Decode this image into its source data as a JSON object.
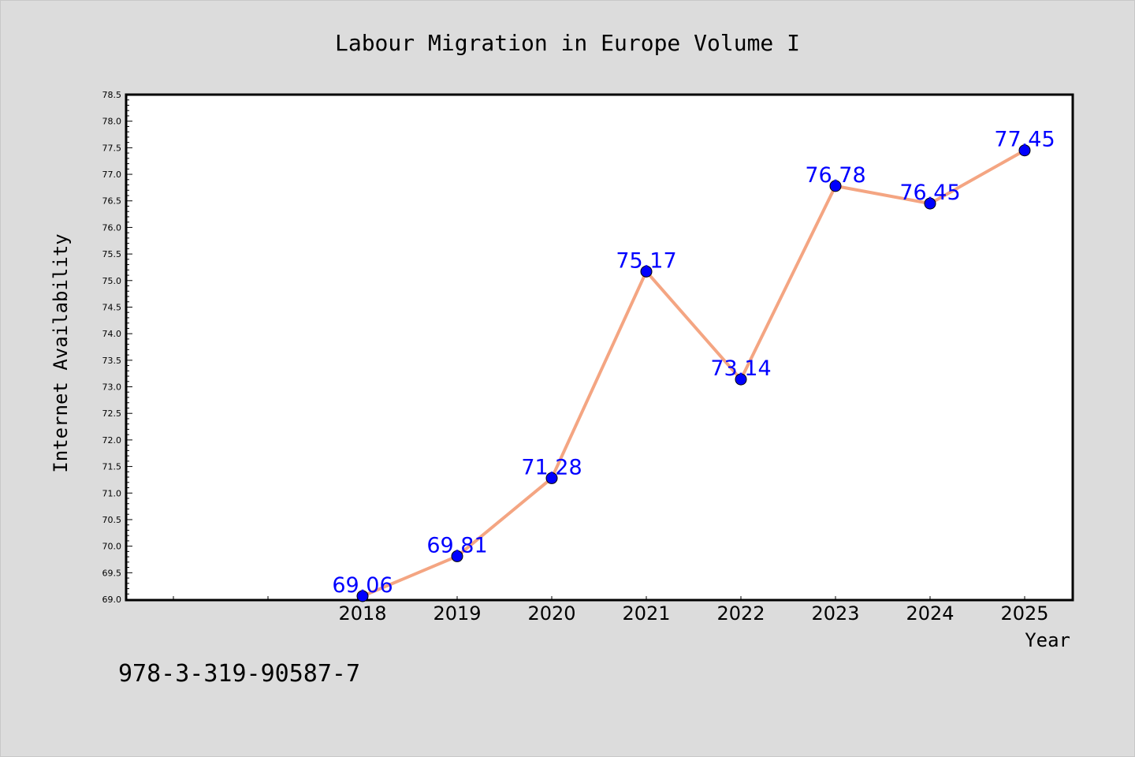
{
  "chart_data": {
    "type": "line",
    "title": "Labour Migration in Europe Volume I",
    "xlabel": "Year",
    "ylabel": "Internet Availability",
    "categories": [
      "2018",
      "2019",
      "2020",
      "2021",
      "2022",
      "2023",
      "2024",
      "2025"
    ],
    "series": [
      {
        "values": [
          69.06,
          69.81,
          71.28,
          75.17,
          73.14,
          76.78,
          76.45,
          77.45
        ],
        "labels": [
          "69.06",
          "69.81",
          "71.28",
          "75.17",
          "73.14",
          "76.78",
          "76.45",
          "77.45"
        ],
        "line_color": "#f4a582",
        "marker_color": "#0000ff",
        "label_color": "#0000ff"
      }
    ],
    "ylim": [
      69.0,
      78.5
    ],
    "yticks": [
      "69.0",
      "69.5",
      "70.0",
      "70.5",
      "71.0",
      "71.5",
      "72.0",
      "72.5",
      "73.0",
      "73.5",
      "74.0",
      "74.5",
      "75.0",
      "75.5",
      "76.0",
      "76.5",
      "77.0",
      "77.5",
      "78.0",
      "78.5"
    ],
    "grid": false,
    "legend": "none"
  },
  "footer": {
    "isbn": "978-3-319-90587-7"
  }
}
